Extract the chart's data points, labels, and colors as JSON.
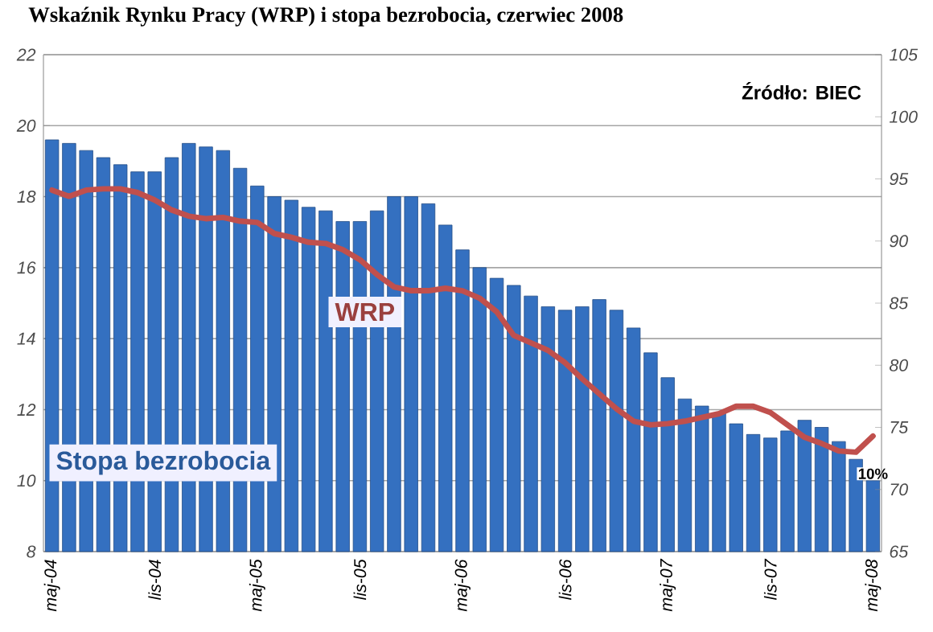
{
  "chart_data": {
    "type": "bar",
    "title": "Wskaźnik Rynku Pracy (WRP) i stopa bezrobocia, czerwiec 2008",
    "annotations": [
      "Źródło: BIEC"
    ],
    "categories": [
      "maj-04",
      null,
      null,
      null,
      null,
      null,
      "lis-04",
      null,
      null,
      null,
      null,
      null,
      "maj-05",
      null,
      null,
      null,
      null,
      null,
      "lis-05",
      null,
      null,
      null,
      null,
      null,
      "maj-06",
      null,
      null,
      null,
      null,
      null,
      "lis-06",
      null,
      null,
      null,
      null,
      null,
      "maj-07",
      null,
      null,
      null,
      null,
      null,
      "lis-07",
      null,
      null,
      null,
      null,
      null,
      "maj-08"
    ],
    "series": [
      {
        "name": "Stopa bezrobocia",
        "color": "#3470c0",
        "values": [
          19.6,
          19.5,
          19.3,
          19.1,
          18.9,
          18.7,
          18.7,
          19.1,
          19.5,
          19.4,
          19.3,
          18.8,
          18.3,
          18.0,
          17.9,
          17.7,
          17.6,
          17.3,
          17.3,
          17.6,
          18.0,
          18.0,
          17.8,
          17.2,
          16.5,
          16.0,
          15.7,
          15.5,
          15.2,
          14.9,
          14.8,
          14.9,
          15.1,
          14.8,
          14.3,
          13.6,
          12.9,
          12.3,
          12.1,
          11.9,
          11.6,
          11.3,
          11.2,
          11.4,
          11.7,
          11.5,
          11.1,
          10.6,
          10.0
        ],
        "value_labels": [
          null,
          null,
          null,
          null,
          null,
          null,
          null,
          null,
          null,
          null,
          null,
          null,
          null,
          null,
          null,
          null,
          null,
          null,
          null,
          null,
          null,
          null,
          null,
          null,
          null,
          null,
          null,
          null,
          null,
          null,
          null,
          null,
          null,
          null,
          null,
          null,
          null,
          null,
          null,
          null,
          null,
          null,
          null,
          null,
          null,
          null,
          null,
          null,
          "10%"
        ]
      },
      {
        "name": "WRP",
        "type": "line",
        "axis": "y2",
        "color": "#c0504d",
        "values": [
          94.1,
          93.6,
          94.1,
          94.2,
          94.2,
          93.9,
          93.3,
          92.5,
          92.0,
          91.8,
          91.9,
          91.6,
          91.5,
          90.6,
          90.3,
          89.9,
          89.8,
          89.3,
          88.5,
          87.3,
          86.3,
          86.0,
          86.0,
          86.2,
          86.0,
          85.4,
          84.3,
          82.4,
          81.8,
          81.2,
          80.2,
          78.9,
          77.7,
          76.5,
          75.5,
          75.2,
          75.3,
          75.5,
          75.8,
          76.1,
          76.7,
          76.7,
          76.2,
          75.2,
          74.2,
          73.7,
          73.1,
          73.0,
          74.3
        ]
      }
    ],
    "ylim": [
      8,
      22
    ],
    "yticks": [
      8,
      10,
      12,
      14,
      16,
      18,
      20,
      22
    ],
    "y2lim": [
      65,
      105
    ],
    "y2ticks": [
      65,
      70,
      75,
      80,
      85,
      90,
      95,
      100,
      105
    ],
    "grid": "y"
  }
}
